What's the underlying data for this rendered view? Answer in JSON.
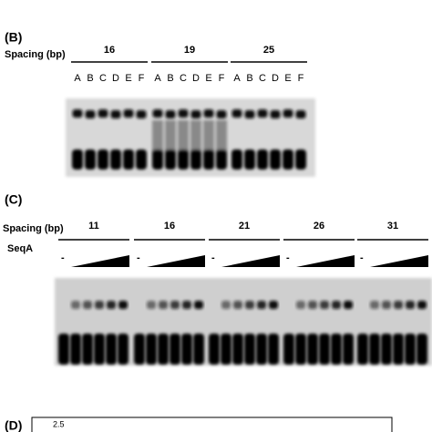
{
  "panel_b": {
    "label": "(B)",
    "spacing_label": "Spacing (bp)",
    "groups": [
      {
        "spacing": "16",
        "lanes": [
          "A",
          "B",
          "C",
          "D",
          "E",
          "F"
        ]
      },
      {
        "spacing": "19",
        "lanes": [
          "A",
          "B",
          "C",
          "D",
          "E",
          "F"
        ]
      },
      {
        "spacing": "25",
        "lanes": [
          "A",
          "B",
          "C",
          "D",
          "E",
          "F"
        ]
      }
    ]
  },
  "panel_c": {
    "label": "(C)",
    "spacing_label": "Spacing (bp)",
    "protein_label": "SeqA",
    "no_protein_label": "-",
    "spacings": [
      "11",
      "16",
      "21",
      "26",
      "31"
    ]
  },
  "panel_d": {
    "label": "(D)",
    "tick": "2.5"
  }
}
